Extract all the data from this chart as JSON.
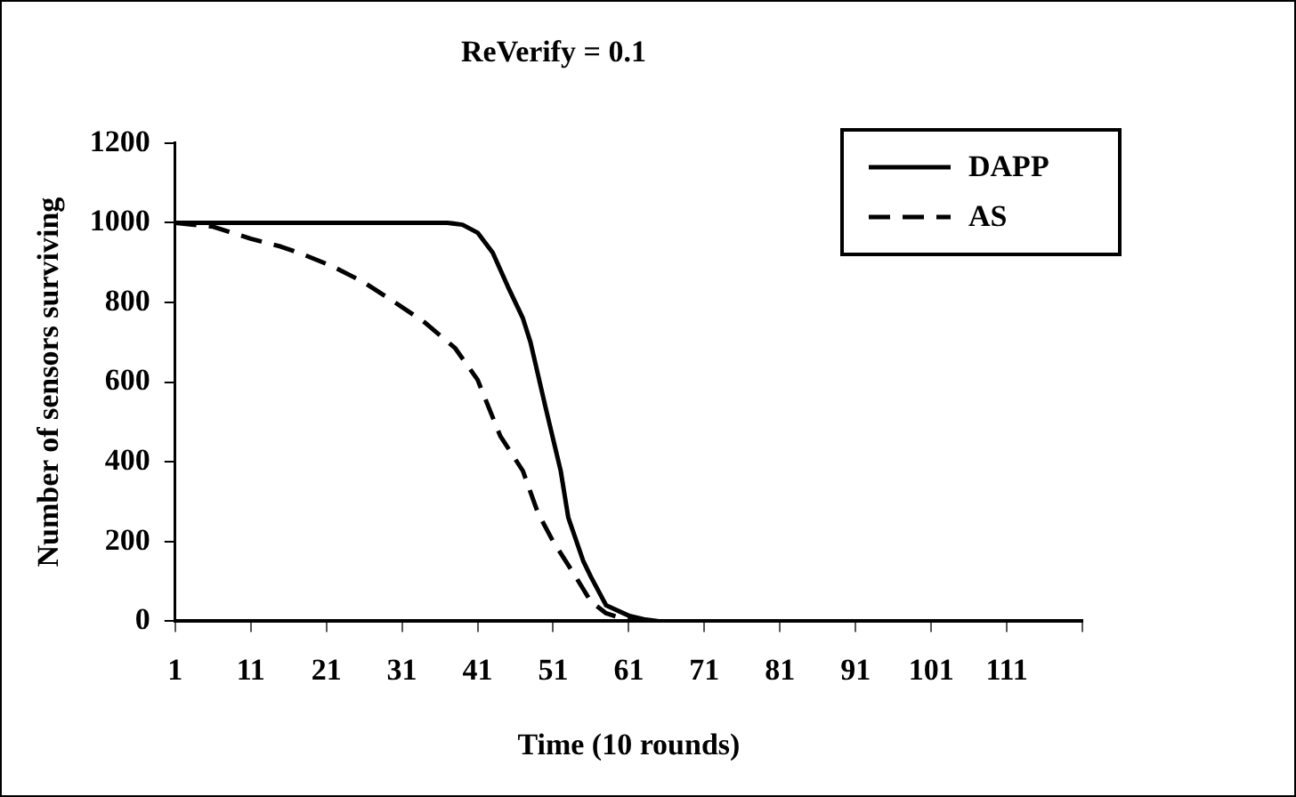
{
  "chart_data": {
    "type": "line",
    "title": "ReVerify = 0.1",
    "xlabel": "Time (10 rounds)",
    "ylabel": "Number of sensors surviving",
    "xlim": [
      1,
      121
    ],
    "xticks": [
      1,
      11,
      21,
      31,
      41,
      51,
      61,
      71,
      81,
      91,
      101,
      111,
      {
        "value": 121,
        "label": null
      }
    ],
    "ylim": [
      0,
      1200
    ],
    "yticks": [
      0,
      200,
      400,
      600,
      800,
      1000,
      1200
    ],
    "grid": false,
    "legend": "top right",
    "marker": "none",
    "series": [
      {
        "name": "DAPP",
        "color": "#000000",
        "line_style": "solid",
        "x": [
          1,
          10,
          20,
          30,
          37,
          39,
          41,
          43,
          45,
          47,
          48,
          50,
          52,
          53,
          55,
          56,
          58,
          61,
          63,
          65,
          70,
          80,
          90,
          100,
          110,
          121
        ],
        "values": [
          1000,
          1000,
          1000,
          1000,
          1000,
          995,
          975,
          925,
          840,
          760,
          700,
          536,
          377,
          260,
          150,
          111,
          40,
          14,
          5,
          0,
          0,
          0,
          0,
          0,
          0,
          0
        ]
      },
      {
        "name": "AS",
        "color": "#000000",
        "line_style": "dashed",
        "x": [
          1,
          6,
          11,
          15,
          18,
          22,
          26,
          30,
          34,
          38,
          41,
          44,
          47,
          49,
          51,
          54,
          56,
          58,
          60,
          62,
          65
        ],
        "values": [
          1000,
          990,
          960,
          940,
          920,
          889,
          850,
          801,
          750,
          686,
          606,
          465,
          377,
          271,
          200,
          111,
          49,
          20,
          8,
          2,
          0
        ]
      }
    ]
  }
}
